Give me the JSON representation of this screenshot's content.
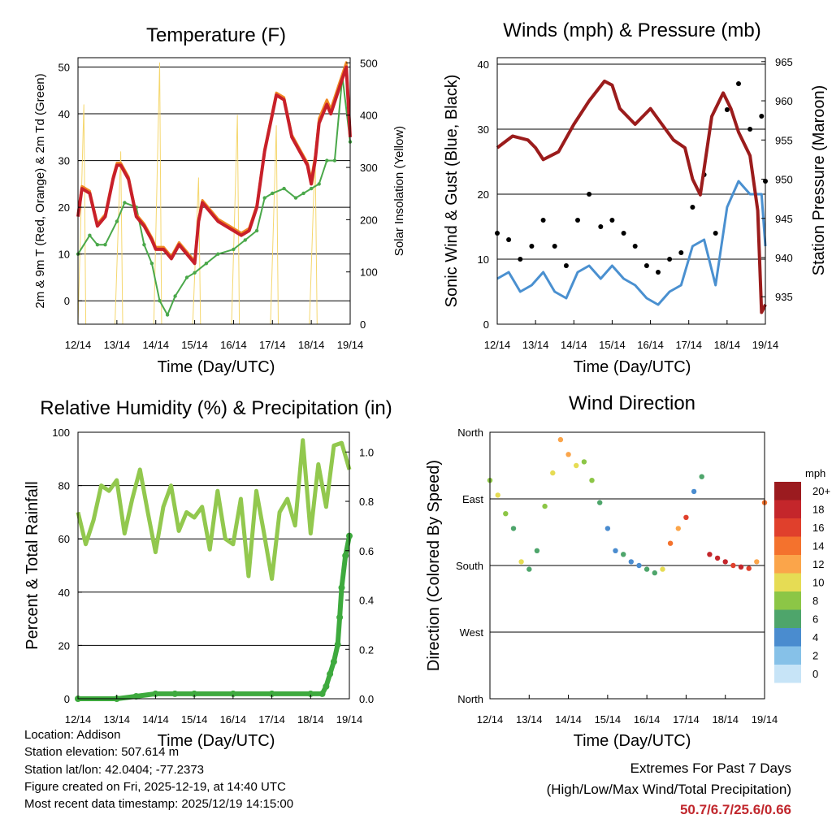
{
  "colors": {
    "temp2m": "#c8202a",
    "temp9m": "#f08a24",
    "dewpoint": "#4aa84a",
    "solar": "#f5d76e",
    "wind": "#4a90d0",
    "gust": "#000000",
    "pressure": "#9b1c1c",
    "rh": "#92c84e",
    "precip": "#3eaa3e",
    "extremes": "#c1272d"
  },
  "chart_data": [
    {
      "id": "temperature",
      "type": "line",
      "title": "Temperature (F)",
      "xlabel": "Time (Day/UTC)",
      "ylabel": "2m & 9m T (Red, Orange) & 2m Td (Green)",
      "y2label": "Solar Insolation (Yellow)",
      "x_ticks": [
        "12/14",
        "13/14",
        "14/14",
        "15/14",
        "16/14",
        "17/14",
        "18/14",
        "19/14"
      ],
      "ylim": [
        -5,
        52
      ],
      "y_ticks": [
        0,
        10,
        20,
        30,
        40,
        50
      ],
      "y2lim": [
        0,
        510
      ],
      "y2_ticks": [
        0,
        100,
        200,
        300,
        400,
        500
      ],
      "series": [
        {
          "name": "2m T",
          "color": "#c8202a",
          "x": [
            0,
            0.1,
            0.3,
            0.5,
            0.7,
            0.9,
            1.0,
            1.1,
            1.3,
            1.5,
            1.7,
            1.9,
            2.0,
            2.2,
            2.4,
            2.6,
            2.8,
            3.0,
            3.1,
            3.2,
            3.4,
            3.6,
            3.8,
            4.0,
            4.2,
            4.4,
            4.6,
            4.8,
            5.0,
            5.1,
            5.3,
            5.5,
            5.7,
            5.9,
            6.0,
            6.1,
            6.2,
            6.4,
            6.5,
            6.7,
            6.9,
            7.0
          ],
          "y": [
            18,
            24,
            23,
            16,
            18,
            26,
            29,
            29,
            26,
            18,
            16,
            13,
            11,
            11,
            9,
            12,
            10,
            8,
            17,
            21,
            19,
            17,
            16,
            15,
            14,
            15,
            20,
            32,
            40,
            44,
            43,
            35,
            32,
            29,
            25,
            30,
            38,
            42,
            40,
            45,
            50,
            35
          ]
        },
        {
          "name": "9m T",
          "color": "#f08a24",
          "x": [
            0,
            0.1,
            0.3,
            0.5,
            0.7,
            0.9,
            1.0,
            1.1,
            1.3,
            1.5,
            1.7,
            1.9,
            2.0,
            2.2,
            2.4,
            2.6,
            2.8,
            3.0,
            3.1,
            3.2,
            3.4,
            3.6,
            3.8,
            4.0,
            4.2,
            4.4,
            4.6,
            4.8,
            5.0,
            5.1,
            5.3,
            5.5,
            5.7,
            5.9,
            6.0,
            6.1,
            6.2,
            6.4,
            6.5,
            6.7,
            6.9,
            7.0
          ],
          "y": [
            18.5,
            24.5,
            23.5,
            16.5,
            18.5,
            26.5,
            29.5,
            29.5,
            26.5,
            18.5,
            16.5,
            13.5,
            11.5,
            11.5,
            9.5,
            12.5,
            10.5,
            8.5,
            17.5,
            21.5,
            19.5,
            17.5,
            16.5,
            15.5,
            14.5,
            15.5,
            20.5,
            32.5,
            40.5,
            44.5,
            43.5,
            35.5,
            32.5,
            29.5,
            26,
            31,
            39,
            43,
            41,
            46,
            51,
            36
          ]
        },
        {
          "name": "2m Td",
          "color": "#4aa84a",
          "x": [
            0,
            0.3,
            0.5,
            0.7,
            1.0,
            1.2,
            1.5,
            1.7,
            1.9,
            2.1,
            2.3,
            2.5,
            2.8,
            3.0,
            3.3,
            3.6,
            4.0,
            4.3,
            4.6,
            4.8,
            5.0,
            5.3,
            5.6,
            5.8,
            6.0,
            6.2,
            6.4,
            6.6,
            6.8,
            7.0
          ],
          "y": [
            10,
            14,
            12,
            12,
            17,
            21,
            20,
            12,
            8,
            0,
            -3,
            1,
            5,
            6,
            8,
            10,
            11,
            13,
            15,
            22,
            23,
            24,
            22,
            23,
            24,
            25,
            30,
            30,
            48,
            34
          ]
        },
        {
          "name": "Solar",
          "color": "#f5d76e",
          "axis": "y2",
          "x": [
            0.0,
            0.15,
            0.2,
            0.25,
            0.45,
            0.95,
            1.1,
            1.15,
            1.2,
            1.4,
            1.95,
            2.1,
            2.15,
            2.2,
            2.4,
            2.95,
            3.1,
            3.15,
            3.2,
            3.4,
            3.95,
            4.1,
            4.15,
            4.2,
            4.4,
            4.95,
            5.1,
            5.15,
            5.2,
            5.4,
            5.95,
            6.1,
            6.15,
            6.2,
            6.4
          ],
          "y": [
            0,
            420,
            0,
            0,
            0,
            0,
            330,
            0,
            0,
            0,
            0,
            500,
            0,
            0,
            0,
            0,
            280,
            0,
            0,
            0,
            0,
            400,
            0,
            0,
            0,
            0,
            380,
            0,
            0,
            0,
            0,
            330,
            0,
            0,
            0
          ]
        }
      ]
    },
    {
      "id": "winds",
      "type": "scatter",
      "title": "Winds (mph) & Pressure (mb)",
      "xlabel": "Time (Day/UTC)",
      "ylabel": "Sonic Wind & Gust (Blue, Black)",
      "y2label": "Station Pressure (Maroon)",
      "x_ticks": [
        "12/14",
        "13/14",
        "14/14",
        "15/14",
        "16/14",
        "17/14",
        "18/14",
        "19/14"
      ],
      "ylim": [
        0,
        41
      ],
      "y_ticks": [
        0,
        10,
        20,
        30,
        40
      ],
      "y2lim": [
        931.5,
        965.5
      ],
      "y2_ticks": [
        935,
        940,
        945,
        950,
        955,
        960,
        965
      ],
      "series": [
        {
          "name": "Sonic Wind",
          "color": "#4a90d0",
          "x": [
            0,
            0.3,
            0.6,
            0.9,
            1.2,
            1.5,
            1.8,
            2.1,
            2.4,
            2.7,
            3.0,
            3.3,
            3.6,
            3.9,
            4.2,
            4.5,
            4.8,
            5.1,
            5.4,
            5.7,
            6.0,
            6.3,
            6.6,
            6.9,
            7.0
          ],
          "y": [
            7,
            8,
            5,
            6,
            8,
            5,
            4,
            8,
            9,
            7,
            9,
            7,
            6,
            4,
            3,
            5,
            6,
            12,
            13,
            6,
            18,
            22,
            20,
            20,
            12
          ]
        },
        {
          "name": "Gust",
          "color": "#000000",
          "x": [
            0,
            0.3,
            0.6,
            0.9,
            1.2,
            1.5,
            1.8,
            2.1,
            2.4,
            2.7,
            3.0,
            3.3,
            3.6,
            3.9,
            4.2,
            4.5,
            4.8,
            5.1,
            5.4,
            5.7,
            6.0,
            6.3,
            6.6,
            6.9,
            7.0
          ],
          "y": [
            14,
            13,
            10,
            12,
            16,
            12,
            9,
            16,
            20,
            15,
            16,
            14,
            12,
            9,
            8,
            10,
            11,
            18,
            23,
            14,
            33,
            37,
            30,
            32,
            22
          ]
        },
        {
          "name": "Station Pressure",
          "color": "#9b1c1c",
          "axis": "y2",
          "x": [
            0,
            0.4,
            0.8,
            1.0,
            1.2,
            1.6,
            2.0,
            2.4,
            2.8,
            3.0,
            3.2,
            3.6,
            3.8,
            4.0,
            4.3,
            4.6,
            4.9,
            5.1,
            5.3,
            5.6,
            5.9,
            6.1,
            6.3,
            6.6,
            6.8,
            6.9,
            7.0
          ],
          "y": [
            954,
            955.5,
            955,
            954,
            952.5,
            953.5,
            957,
            960,
            962.5,
            962,
            959,
            957,
            958,
            959,
            957,
            955,
            954,
            950,
            948,
            958,
            961,
            959,
            956,
            953,
            946,
            933,
            934
          ]
        }
      ]
    },
    {
      "id": "humidity",
      "type": "line",
      "title": "Relative Humidity (%) & Precipitation (in)",
      "xlabel": "Time (Day/UTC)",
      "ylabel": "Percent & Total Rainfall",
      "x_ticks": [
        "12/14",
        "13/14",
        "14/14",
        "15/14",
        "16/14",
        "17/14",
        "18/14",
        "19/14"
      ],
      "ylim": [
        0,
        100
      ],
      "y_ticks": [
        0,
        20,
        40,
        60,
        80,
        100
      ],
      "y2lim": [
        0,
        1.08
      ],
      "y2_ticks": [
        "0.0",
        "0.2",
        "0.4",
        "0.6",
        "0.8",
        "1.0"
      ],
      "series": [
        {
          "name": "Relative Humidity",
          "color": "#92c84e",
          "x": [
            0,
            0.2,
            0.4,
            0.6,
            0.8,
            1.0,
            1.2,
            1.4,
            1.6,
            1.8,
            2.0,
            2.2,
            2.4,
            2.6,
            2.8,
            3.0,
            3.2,
            3.4,
            3.6,
            3.8,
            4.0,
            4.2,
            4.4,
            4.6,
            4.8,
            5.0,
            5.2,
            5.4,
            5.6,
            5.8,
            6.0,
            6.2,
            6.4,
            6.6,
            6.8,
            7.0
          ],
          "y": [
            70,
            58,
            67,
            80,
            78,
            82,
            62,
            75,
            86,
            70,
            55,
            72,
            80,
            63,
            70,
            68,
            72,
            56,
            78,
            60,
            58,
            75,
            46,
            78,
            62,
            45,
            70,
            75,
            65,
            97,
            62,
            88,
            72,
            95,
            96,
            86
          ]
        },
        {
          "name": "Total Rainfall",
          "color": "#3eaa3e",
          "axis": "y2",
          "x": [
            0,
            1.0,
            1.5,
            2.0,
            2.5,
            3.0,
            4.0,
            5.0,
            6.0,
            6.3,
            6.4,
            6.5,
            6.6,
            6.7,
            6.75,
            6.8,
            6.9,
            7.0
          ],
          "y": [
            0,
            0,
            0.01,
            0.02,
            0.02,
            0.02,
            0.02,
            0.02,
            0.02,
            0.02,
            0.05,
            0.1,
            0.15,
            0.22,
            0.33,
            0.45,
            0.58,
            0.66
          ]
        }
      ]
    },
    {
      "id": "direction",
      "type": "scatter",
      "title": "Wind Direction",
      "xlabel": "Time (Day/UTC)",
      "ylabel": "Direction (Colored By Speed)",
      "x_ticks": [
        "12/14",
        "13/14",
        "14/14",
        "15/14",
        "16/14",
        "17/14",
        "18/14",
        "19/14"
      ],
      "y_ticks": [
        "North",
        "West",
        "South",
        "East",
        "North"
      ],
      "ylim": [
        0,
        360
      ],
      "colorbar": {
        "title": "mph",
        "labels": [
          "20+",
          "18",
          "16",
          "14",
          "12",
          "10",
          "8",
          "6",
          "4",
          "2",
          "0"
        ],
        "colors": [
          "#9b1b1f",
          "#c4262b",
          "#e0402c",
          "#f4722d",
          "#fba54a",
          "#e6dc54",
          "#8cc646",
          "#4ea56b",
          "#4a8ccf",
          "#86c1e8",
          "#c7e4f7"
        ]
      },
      "series": [
        {
          "name": "Direction",
          "x": [
            0,
            0.2,
            0.4,
            0.6,
            0.8,
            1.0,
            1.2,
            1.4,
            1.6,
            1.8,
            2.0,
            2.2,
            2.4,
            2.6,
            2.8,
            3.0,
            3.2,
            3.4,
            3.6,
            3.8,
            4.0,
            4.2,
            4.4,
            4.6,
            4.8,
            5.0,
            5.2,
            5.4,
            5.6,
            5.8,
            6.0,
            6.2,
            6.4,
            6.6,
            6.8,
            7.0
          ],
          "y": [
            295,
            275,
            250,
            230,
            185,
            175,
            200,
            260,
            305,
            350,
            330,
            315,
            320,
            295,
            265,
            230,
            200,
            195,
            185,
            180,
            175,
            170,
            175,
            210,
            230,
            245,
            280,
            300,
            195,
            190,
            185,
            180,
            178,
            176,
            185,
            265
          ],
          "speed": [
            8,
            9,
            7,
            5,
            10,
            5,
            6,
            8,
            10,
            11,
            12,
            9,
            7,
            8,
            6,
            4,
            4,
            5,
            4,
            3,
            5,
            6,
            10,
            14,
            12,
            16,
            4,
            5,
            18,
            18,
            17,
            16,
            18,
            16,
            12,
            14
          ]
        }
      ]
    }
  ],
  "footer": {
    "location": "Location: Addison",
    "elevation": "Station elevation: 507.614 m",
    "latlon": "Station lat/lon: 42.0404; -77.2373",
    "created": "Figure created on Fri, 2025-12-19, at 14:40 UTC",
    "recent": "Most recent data timestamp: 2025/12/19 14:15:00"
  },
  "extremes": {
    "title": "Extremes For Past 7 Days",
    "subtitle": "(High/Low/Max Wind/Total Precipitation)",
    "values": "50.7/6.7/25.6/0.66"
  }
}
